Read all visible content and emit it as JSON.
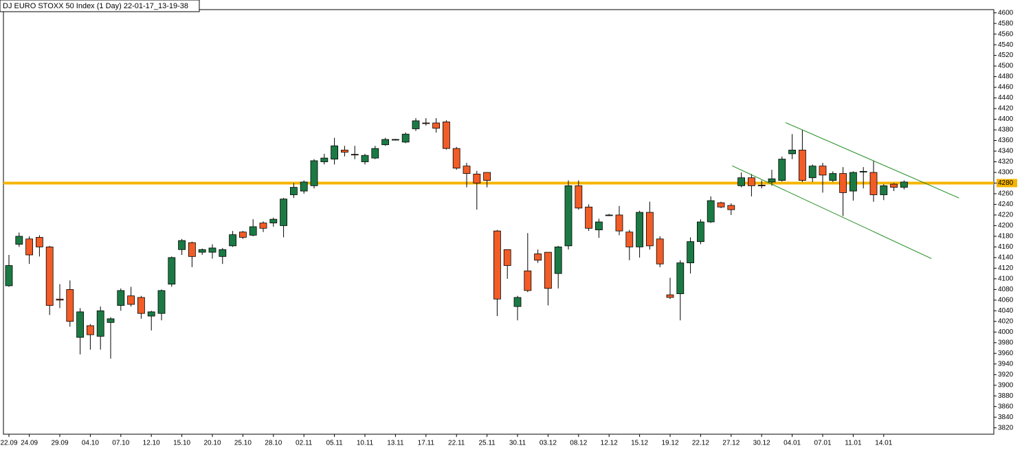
{
  "chart_data": {
    "type": "candlestick",
    "title": "DJ EURO STOXX 50 Index (1 Day) 22-01-17_13-19-38",
    "categories": [
      "22.09",
      null,
      "24.09",
      null,
      null,
      "29.09",
      null,
      null,
      "04.10",
      null,
      null,
      "07.10",
      null,
      null,
      "12.10",
      null,
      null,
      "15.10",
      null,
      null,
      "20.10",
      null,
      null,
      "25.10",
      null,
      null,
      "28.10",
      null,
      null,
      "02.11",
      null,
      null,
      "05.11",
      null,
      null,
      "10.11",
      null,
      null,
      "13.11",
      null,
      null,
      "17.11",
      null,
      null,
      "22.11",
      null,
      null,
      "25.11",
      null,
      null,
      "30.11",
      null,
      null,
      "03.12",
      null,
      null,
      "08.12",
      null,
      null,
      "12.12",
      null,
      null,
      "15.12",
      null,
      null,
      "19.12",
      null,
      null,
      "22.12",
      null,
      null,
      "27.12",
      null,
      null,
      "30.12",
      null,
      null,
      "04.01",
      null,
      null,
      "07.01",
      null,
      null,
      "11.01",
      null,
      null,
      "14.01",
      null,
      null
    ],
    "open": [
      4087,
      4165,
      4175,
      4178,
      4160,
      4062,
      4080,
      3990,
      4012,
      3992,
      4018,
      4050,
      4068,
      4065,
      4030,
      4035,
      4090,
      4155,
      4168,
      4150,
      4150,
      4142,
      4162,
      4188,
      4182,
      4205,
      4205,
      4200,
      4258,
      4265,
      4275,
      4320,
      4325,
      4342,
      4334,
      4320,
      4327,
      4352,
      4361,
      4357,
      4382,
      4393,
      4393,
      4395,
      4345,
      4312,
      4297,
      4300,
      4190,
      4155,
      4048,
      4115,
      4147,
      4150,
      4110,
      4162,
      4275,
      4235,
      4192,
      4219,
      4220,
      4188,
      4160,
      4225,
      4175,
      4070,
      4072,
      4130,
      4170,
      4207,
      4243,
      4238,
      4275,
      4290,
      4276,
      4282,
      4285,
      4335,
      4342,
      4290,
      4312,
      4285,
      4298,
      4265,
      4301,
      4300,
      4258,
      4278,
      4272
    ],
    "high": [
      4145,
      4187,
      4180,
      4182,
      4162,
      4090,
      4097,
      4045,
      4015,
      4048,
      4028,
      4082,
      4085,
      4068,
      4040,
      4080,
      4142,
      4175,
      4170,
      4157,
      4165,
      4158,
      4190,
      4190,
      4212,
      4208,
      4215,
      4252,
      4280,
      4285,
      4325,
      4335,
      4365,
      4350,
      4350,
      4335,
      4350,
      4365,
      4363,
      4375,
      4402,
      4402,
      4402,
      4398,
      4348,
      4318,
      4303,
      4300,
      4192,
      4155,
      4068,
      4186,
      4155,
      4150,
      4162,
      4285,
      4285,
      4240,
      4213,
      4222,
      4237,
      4192,
      4228,
      4245,
      4180,
      4102,
      4135,
      4178,
      4212,
      4255,
      4245,
      4242,
      4300,
      4297,
      4285,
      4305,
      4330,
      4372,
      4380,
      4315,
      4318,
      4302,
      4310,
      4302,
      4310,
      4322,
      4278,
      4280,
      4285
    ],
    "low": [
      4085,
      4160,
      4128,
      4142,
      4032,
      4045,
      4010,
      3958,
      3967,
      3967,
      3950,
      4040,
      4048,
      4025,
      4003,
      4022,
      4085,
      4145,
      4122,
      4145,
      4138,
      4128,
      4160,
      4175,
      4180,
      4188,
      4198,
      4178,
      4252,
      4260,
      4270,
      4315,
      4315,
      4330,
      4325,
      4315,
      4325,
      4350,
      4360,
      4355,
      4378,
      4388,
      4375,
      4343,
      4305,
      4272,
      4230,
      4272,
      4030,
      4100,
      4022,
      4075,
      4130,
      4050,
      4082,
      4155,
      4230,
      4190,
      4177,
      4218,
      4182,
      4135,
      4140,
      4155,
      4122,
      4062,
      4022,
      4110,
      4165,
      4205,
      4233,
      4220,
      4272,
      4255,
      4270,
      4275,
      4283,
      4325,
      4282,
      4282,
      4262,
      4282,
      4218,
      4247,
      4270,
      4245,
      4248,
      4265,
      4268
    ],
    "close": [
      4125,
      4180,
      4145,
      4160,
      4050,
      4060,
      4020,
      4038,
      3995,
      4040,
      4025,
      4078,
      4052,
      4035,
      4038,
      4078,
      4140,
      4172,
      4142,
      4155,
      4158,
      4155,
      4183,
      4178,
      4198,
      4195,
      4212,
      4250,
      4272,
      4282,
      4322,
      4327,
      4350,
      4338,
      4333,
      4332,
      4345,
      4362,
      4362,
      4372,
      4397,
      4392,
      4383,
      4345,
      4308,
      4298,
      4280,
      4285,
      4062,
      4125,
      4065,
      4078,
      4135,
      4082,
      4160,
      4275,
      4233,
      4195,
      4207,
      4220,
      4190,
      4160,
      4225,
      4162,
      4128,
      4065,
      4130,
      4170,
      4207,
      4247,
      4235,
      4230,
      4290,
      4275,
      4275,
      4288,
      4325,
      4342,
      4285,
      4312,
      4295,
      4298,
      4262,
      4300,
      4302,
      4258,
      4275,
      4272,
      4282
    ],
    "up_color": "#1b7a44",
    "down_color": "#f25c26",
    "ylim": [
      3808,
      4606
    ],
    "yticks": [
      3820,
      3840,
      3860,
      3880,
      3900,
      3920,
      3940,
      3960,
      3980,
      4000,
      4020,
      4040,
      4060,
      4080,
      4100,
      4120,
      4140,
      4160,
      4180,
      4200,
      4220,
      4240,
      4260,
      4280,
      4300,
      4320,
      4340,
      4360,
      4380,
      4400,
      4420,
      4440,
      4460,
      4480,
      4500,
      4520,
      4540,
      4560,
      4580,
      4600
    ],
    "hline": {
      "value": 4280,
      "color": "#f5b400"
    },
    "trendlines": [
      {
        "x": [
          76.35,
          93.4
        ],
        "y": [
          4393.7,
          4252
        ],
        "color": "#1a8a1a"
      },
      {
        "x": [
          71.1,
          90.7
        ],
        "y": [
          4312.5,
          4138
        ],
        "color": "#1a8a1a"
      }
    ]
  }
}
